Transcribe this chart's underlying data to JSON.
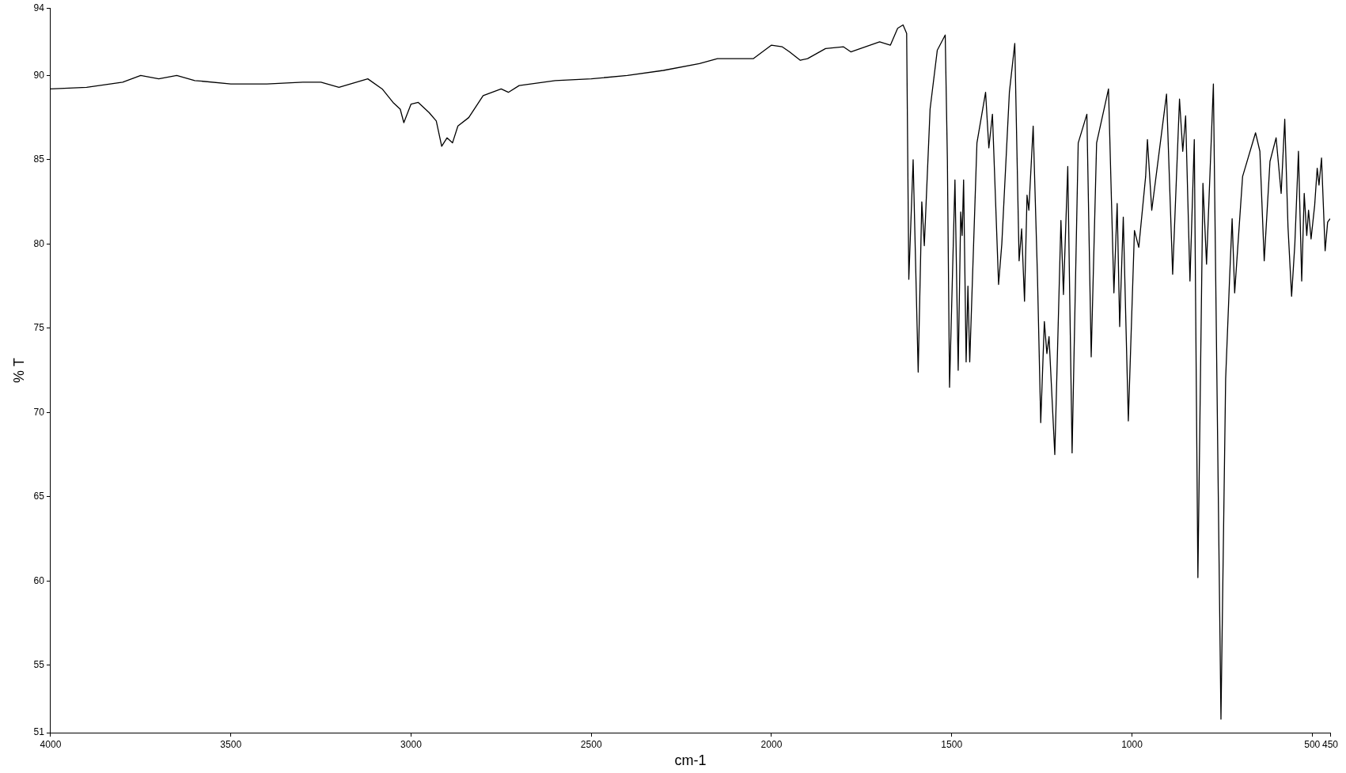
{
  "chart_data": {
    "type": "line",
    "xlabel": "cm-1",
    "ylabel": "% T",
    "xlim": [
      4000,
      450
    ],
    "ylim": [
      51,
      94
    ],
    "xticks": [
      4000,
      3500,
      3000,
      2500,
      2000,
      1500,
      1000,
      500,
      450
    ],
    "yticks": [
      51,
      55,
      60,
      65,
      70,
      75,
      80,
      85,
      90,
      94
    ],
    "grid": false,
    "legend": false,
    "marker": "none",
    "line_style": "solid",
    "series": [
      {
        "color": "#000000",
        "x": [
          4000,
          3900,
          3800,
          3750,
          3700,
          3650,
          3600,
          3500,
          3400,
          3300,
          3250,
          3200,
          3120,
          3080,
          3050,
          3030,
          3020,
          3000,
          2980,
          2950,
          2930,
          2915,
          2900,
          2885,
          2870,
          2840,
          2800,
          2750,
          2730,
          2700,
          2600,
          2500,
          2400,
          2300,
          2200,
          2150,
          2050,
          2000,
          1970,
          1950,
          1920,
          1900,
          1850,
          1800,
          1780,
          1700,
          1670,
          1650,
          1635,
          1625,
          1619,
          1607,
          1593,
          1583,
          1576,
          1560,
          1540,
          1518,
          1512,
          1506,
          1491,
          1482,
          1475,
          1471,
          1467,
          1460,
          1455,
          1450,
          1430,
          1406,
          1397,
          1387,
          1370,
          1361,
          1340,
          1325,
          1313,
          1306,
          1298,
          1291,
          1286,
          1274,
          1262,
          1253,
          1243,
          1236,
          1230,
          1214,
          1197,
          1190,
          1178,
          1166,
          1149,
          1125,
          1113,
          1098,
          1065,
          1050,
          1041,
          1034,
          1024,
          1010,
          993,
          981,
          962,
          957,
          945,
          904,
          887,
          868,
          859,
          851,
          839,
          827,
          817,
          803,
          793,
          774,
          753,
          740,
          729,
          722,
          715,
          693,
          657,
          645,
          633,
          617,
          600,
          586,
          576,
          567,
          557,
          548,
          538,
          529,
          522,
          515,
          510,
          503,
          493,
          486,
          481,
          474,
          464,
          457,
          450
        ],
        "values": [
          89.2,
          89.3,
          89.6,
          90.0,
          89.8,
          90.0,
          89.7,
          89.5,
          89.5,
          89.6,
          89.6,
          89.3,
          89.8,
          89.2,
          88.4,
          88.0,
          87.2,
          88.3,
          88.4,
          87.8,
          87.3,
          85.8,
          86.3,
          86.0,
          87.0,
          87.5,
          88.8,
          89.2,
          89.0,
          89.4,
          89.7,
          89.8,
          90.0,
          90.3,
          90.7,
          91.0,
          91.0,
          91.8,
          91.7,
          91.4,
          90.9,
          91.0,
          91.6,
          91.7,
          91.4,
          92.0,
          91.8,
          92.8,
          93.0,
          92.5,
          77.9,
          85.0,
          72.4,
          82.5,
          79.9,
          88.0,
          91.5,
          92.4,
          85.0,
          71.5,
          83.8,
          72.5,
          81.9,
          80.5,
          83.8,
          73.0,
          77.5,
          73.0,
          86.0,
          89.0,
          85.7,
          87.7,
          77.6,
          80.0,
          89.0,
          91.9,
          79.0,
          80.9,
          76.6,
          82.9,
          82.0,
          87.0,
          78.0,
          69.4,
          75.4,
          73.5,
          74.5,
          67.5,
          81.4,
          77.0,
          84.6,
          67.6,
          86.0,
          87.7,
          73.3,
          86.0,
          89.2,
          77.1,
          82.4,
          75.1,
          81.6,
          69.5,
          80.8,
          79.8,
          84.0,
          86.2,
          82.0,
          88.9,
          78.2,
          88.6,
          85.5,
          87.6,
          77.8,
          86.2,
          60.2,
          83.6,
          78.8,
          89.5,
          51.8,
          72.0,
          78.0,
          81.5,
          77.1,
          84.0,
          86.6,
          85.5,
          79.0,
          84.9,
          86.3,
          83.0,
          87.4,
          81.0,
          76.9,
          80.0,
          85.5,
          77.8,
          83.0,
          80.5,
          82.0,
          80.3,
          82.3,
          84.5,
          83.5,
          85.1,
          79.6,
          81.3,
          81.5
        ]
      }
    ]
  }
}
